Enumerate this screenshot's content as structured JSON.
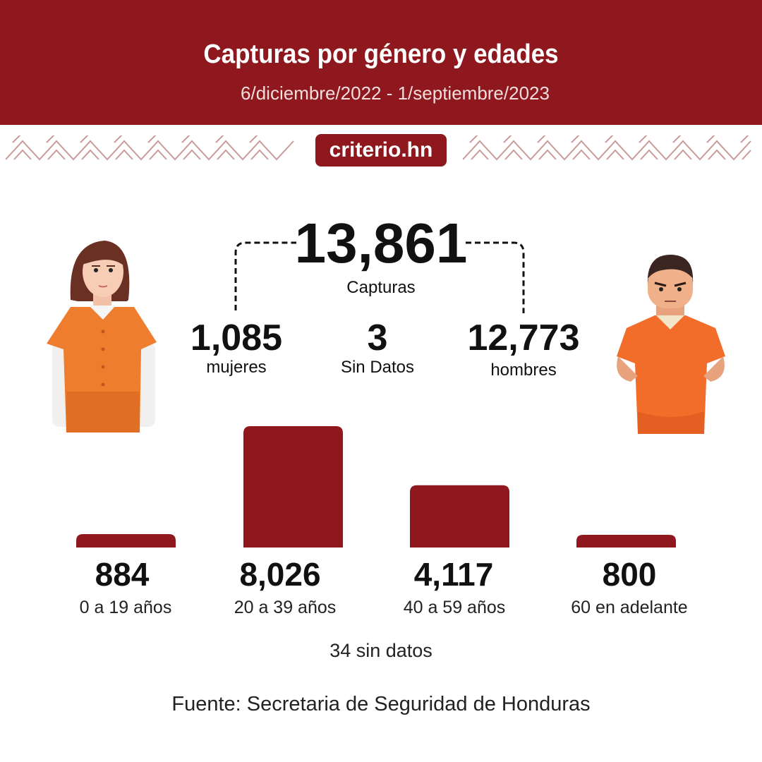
{
  "header": {
    "title": "Capturas por género y edades",
    "date_range": "6/diciembre/2022 - 1/septiembre/2023"
  },
  "brand": {
    "label": "criterio.hn"
  },
  "summary": {
    "total": "13,861",
    "total_label": "Capturas",
    "women_value": "1,085",
    "women_label": "mujeres",
    "unknown_value": "3",
    "unknown_label": "Sin Datos",
    "men_value": "12,773",
    "men_label": "hombres"
  },
  "chart_data": {
    "type": "bar",
    "categories": [
      "0 a 19 años",
      "20 a 39 años",
      "40 a 59 años",
      "60 en adelante"
    ],
    "values": [
      884,
      8026,
      4117,
      800
    ],
    "value_labels": [
      "884",
      "8,026",
      "4,117",
      "800"
    ],
    "title": "",
    "xlabel": "",
    "ylabel": "",
    "ylim": [
      0,
      8026
    ],
    "grid": false,
    "bar_color": "#8e181e",
    "no_data_note": "34 sin datos"
  },
  "footer": {
    "source": "Fuente: Secretaria de Seguridad de Honduras"
  },
  "colors": {
    "header_bg": "#8e181e",
    "pattern": "#c99a9a",
    "uniform_orange": "#ef7d2e"
  },
  "icons": {
    "woman": "woman-inmate-icon",
    "man": "man-inmate-icon"
  }
}
